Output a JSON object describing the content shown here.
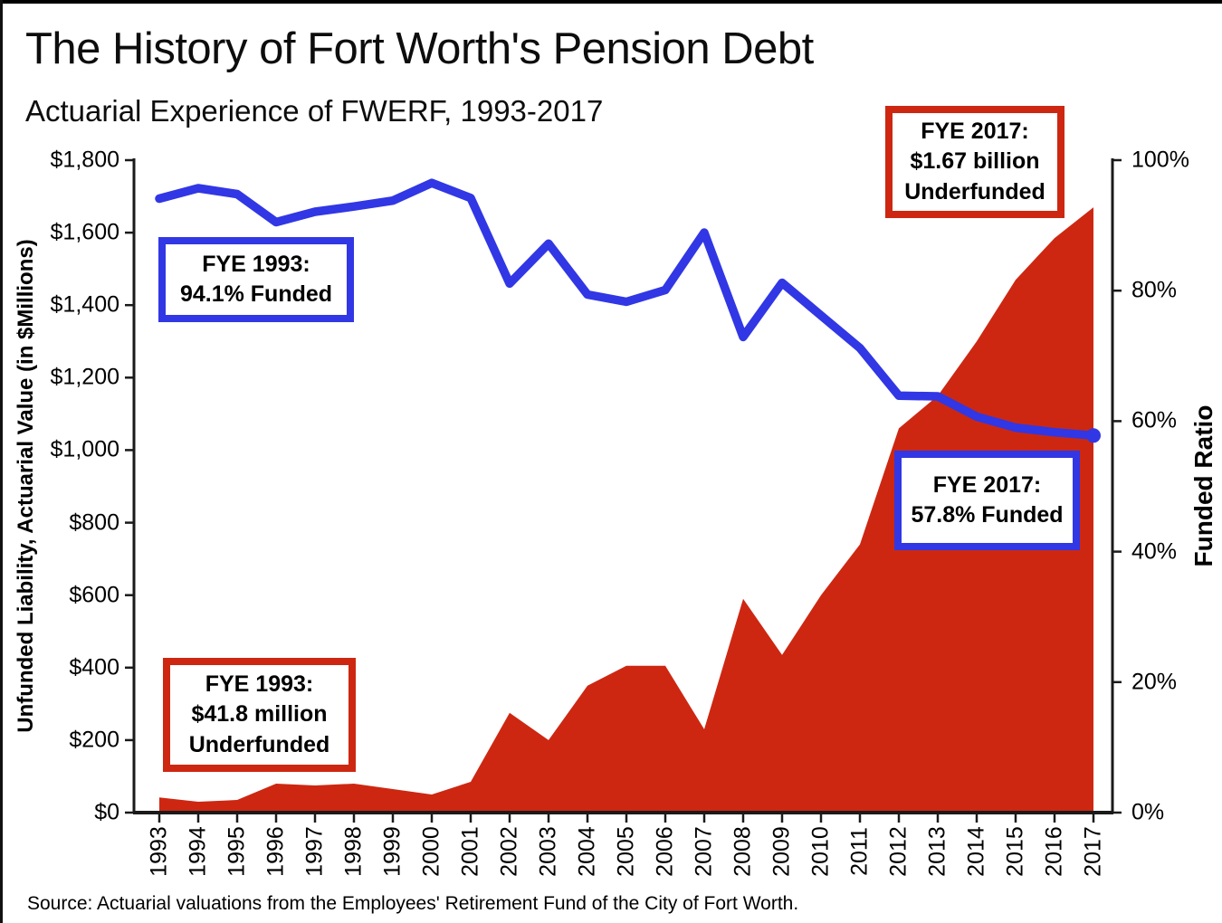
{
  "title": "The History of Fort Worth's Pension Debt",
  "subtitle": "Actuarial Experience of FWERF, 1993-2017",
  "source": "Source: Actuarial valuations from the Employees' Retirement Fund of the City of Fort Worth.",
  "colors": {
    "red": "#cd2712",
    "blue": "#3137e4",
    "axis": "#1a1a1a"
  },
  "left_axis": {
    "title": "Unfunded Liability, Actuarial Value (in $Millions)",
    "tick_labels": [
      "$1,800",
      "$1,600",
      "$1,400",
      "$1,200",
      "$1,000",
      "$800",
      "$600",
      "$400",
      "$200",
      "$0"
    ],
    "tick_values": [
      1800,
      1600,
      1400,
      1200,
      1000,
      800,
      600,
      400,
      200,
      0
    ]
  },
  "right_axis": {
    "title": "Funded Ratio",
    "tick_labels": [
      "100%",
      "80%",
      "60%",
      "40%",
      "20%",
      "0%"
    ],
    "tick_values": [
      100,
      80,
      60,
      40,
      20,
      0
    ]
  },
  "callouts": [
    {
      "id": "fye-1993-funded",
      "style": "blue",
      "lines": [
        "FYE 1993:",
        "94.1% Funded"
      ]
    },
    {
      "id": "fye-2017-underfunded",
      "style": "red",
      "lines": [
        "FYE 2017:",
        "$1.67 billion",
        "Underfunded"
      ]
    },
    {
      "id": "fye-2017-funded",
      "style": "blue",
      "lines": [
        "FYE 2017:",
        "57.8% Funded"
      ]
    },
    {
      "id": "fye-1993-underfunded",
      "style": "red",
      "lines": [
        "FYE 1993:",
        "$41.8 million",
        "Underfunded"
      ]
    }
  ],
  "chart_data": {
    "type": "area",
    "x": [
      1993,
      1994,
      1995,
      1996,
      1997,
      1998,
      1999,
      2000,
      2001,
      2002,
      2003,
      2004,
      2005,
      2006,
      2007,
      2008,
      2009,
      2010,
      2011,
      2012,
      2013,
      2014,
      2015,
      2016,
      2017
    ],
    "series": [
      {
        "name": "Unfunded Liability, Actuarial Value (in $Millions)",
        "type": "area",
        "y_axis": "left",
        "color": "#cd2712",
        "values": [
          41.8,
          30,
          35,
          80,
          75,
          80,
          65,
          50,
          85,
          275,
          200,
          350,
          405,
          405,
          230,
          590,
          435,
          600,
          740,
          1060,
          1150,
          1300,
          1470,
          1585,
          1670
        ]
      },
      {
        "name": "Funded Ratio",
        "type": "line",
        "y_axis": "right",
        "color": "#3137e4",
        "values": [
          94.1,
          95.7,
          94.8,
          90.5,
          92.1,
          92.9,
          93.8,
          96.5,
          94.2,
          81.1,
          87.2,
          79.4,
          78.3,
          80.1,
          88.9,
          72.9,
          81.2,
          76.2,
          71.2,
          63.9,
          63.8,
          60.7,
          59.0,
          58.3,
          57.8
        ]
      }
    ],
    "title": "The History of Fort Worth's Pension Debt",
    "xlabel": "",
    "left_ylabel": "Unfunded Liability, Actuarial Value (in $Millions)",
    "right_ylabel": "Funded Ratio",
    "left_ylim": [
      0,
      1800
    ],
    "right_ylim": [
      0,
      100
    ],
    "grid": false,
    "legend": false
  }
}
